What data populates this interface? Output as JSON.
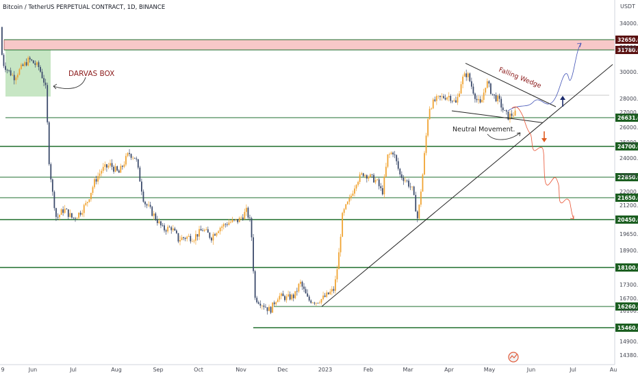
{
  "header": {
    "title": "Bitcoin / TetherUS PERPETUAL CONTRACT, 1D, BINANCE"
  },
  "chart_data": {
    "type": "candlestick",
    "price_unit": "USDT",
    "y_axis_ticks": [
      34000,
      32000,
      30000,
      28000,
      27000,
      26000,
      25000,
      24000,
      23000,
      22000,
      21200,
      20450,
      19650,
      18900,
      17300,
      16700,
      16100,
      14900,
      14380
    ],
    "level_lines": [
      32650,
      31780,
      26631,
      24700,
      22850,
      21650,
      20450,
      18100,
      16260,
      15460
    ],
    "x_axis_labels": [
      "9",
      "Jun",
      "Jul",
      "Aug",
      "Sep",
      "Oct",
      "Nov",
      "Dec",
      "2023",
      "Feb",
      "Mar",
      "Apr",
      "May",
      "Jun",
      "Jul",
      "Au"
    ],
    "annotations": {
      "darvas_box": "DARVAS BOX",
      "falling_wedge": "Falling Wedge",
      "neutral_movement": "Neutral Movement."
    },
    "colors": {
      "up_candle": "#f0a331",
      "down_candle": "#3b4a6b",
      "level_line": "#1e6e2c",
      "level_label_bg": "#1b5e20",
      "resistance_zone": "#f6b5b5",
      "darvas_box": "#b9e0b5",
      "bull_path": "#3f51b5",
      "bear_path": "#e8502f"
    }
  }
}
